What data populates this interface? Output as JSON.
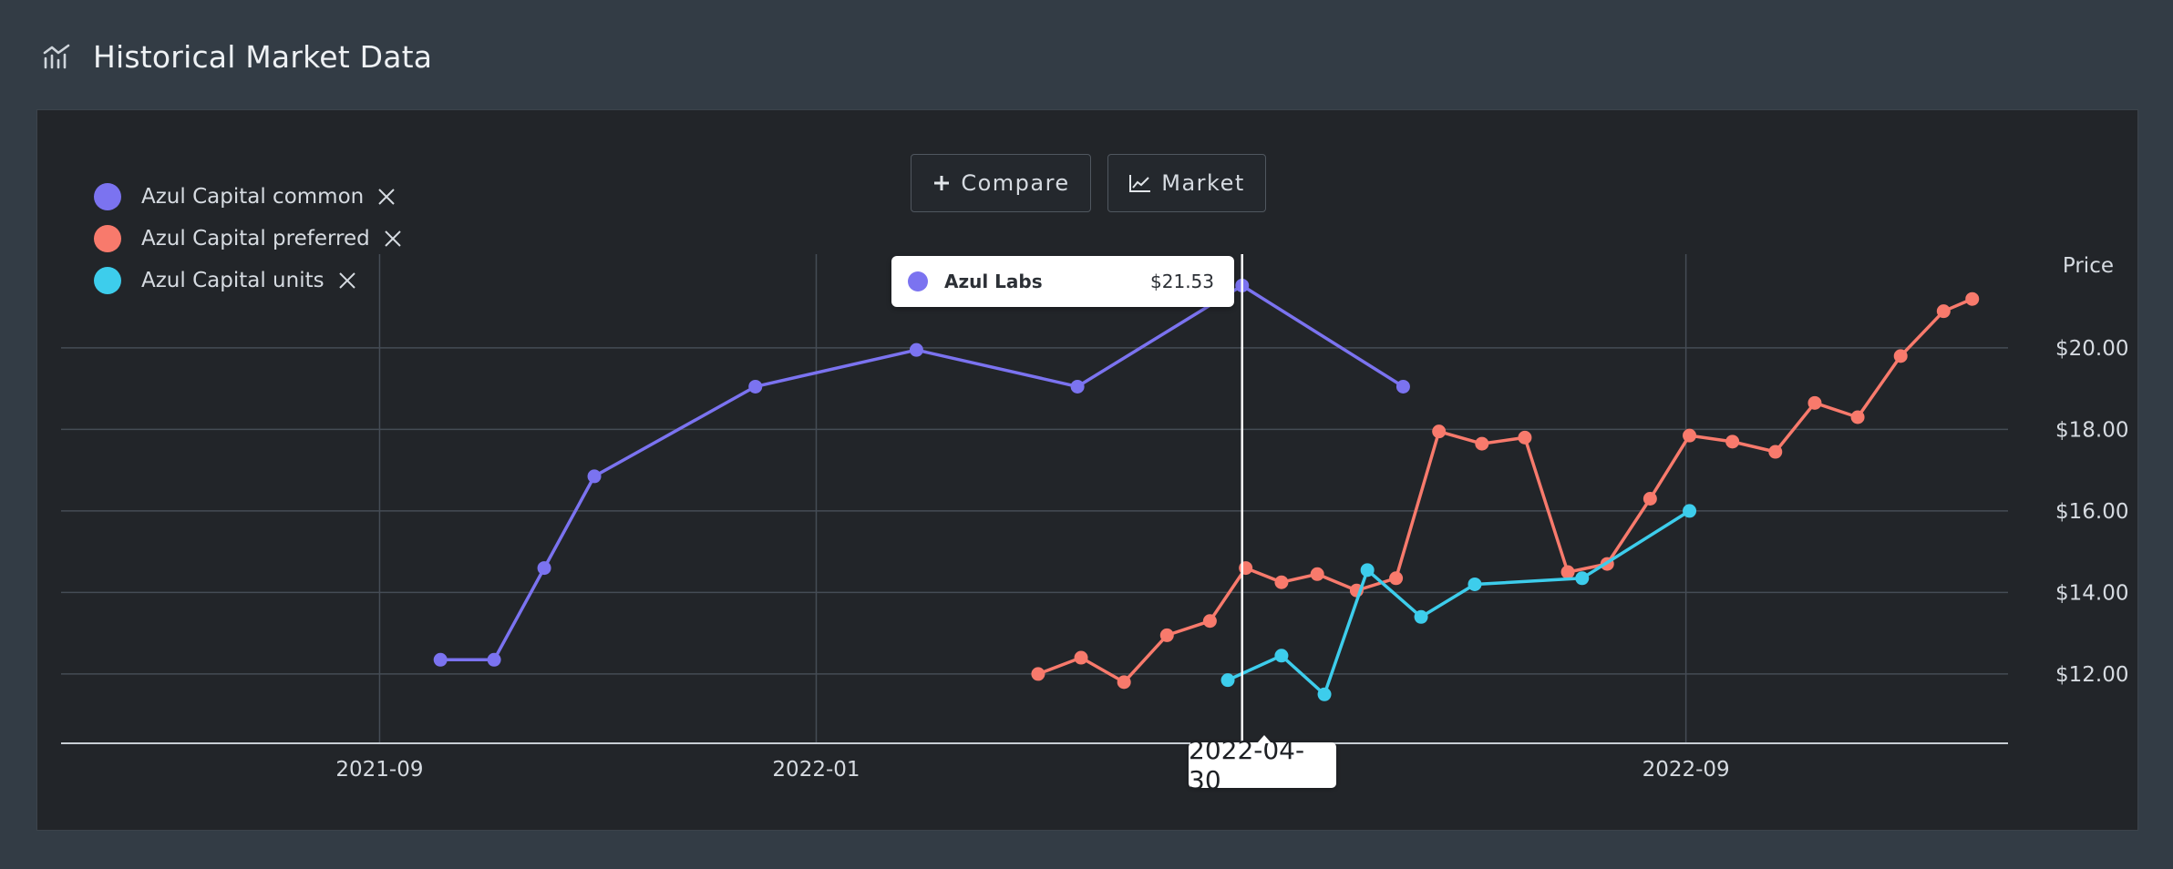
{
  "header": {
    "title": "Historical Market Data",
    "icon": "chart-icon"
  },
  "legend": [
    {
      "label": "Azul Capital common",
      "color": "#7b73f0"
    },
    {
      "label": "Azul Capital preferred",
      "color": "#f87a6c"
    },
    {
      "label": "Azul Capital units",
      "color": "#3dcdec"
    }
  ],
  "buttons": {
    "compare": "Compare",
    "market": "Market"
  },
  "tooltip": {
    "name": "Azul Labs",
    "value": "$21.53",
    "color": "#7b73f0"
  },
  "crosshair": {
    "date": "2022-04-30"
  },
  "chart_data": {
    "type": "line",
    "ylabel": "Price",
    "ylim": [
      10.3,
      22.3
    ],
    "y_ticks": [
      12,
      14,
      16,
      18,
      20
    ],
    "y_tick_labels": [
      "$12.00",
      "$14.00",
      "$16.00",
      "$18.00",
      "$20.00"
    ],
    "x_ticks": [
      "2021-09-01",
      "2022-01-01",
      "2022-09-01"
    ],
    "x_tick_labels": [
      "2021-09",
      "2022-01",
      "2022-09"
    ],
    "xlim": [
      "2021-06-04",
      "2022-11-30"
    ],
    "grid": true,
    "legend_position": "top-left",
    "series": [
      {
        "name": "Azul Capital common",
        "color": "#7b73f0",
        "x": [
          "2021-09-18",
          "2021-10-03",
          "2021-10-17",
          "2021-10-31",
          "2021-12-15",
          "2022-01-29",
          "2022-03-15",
          "2022-04-30",
          "2022-06-14"
        ],
        "y": [
          12.35,
          12.35,
          14.6,
          16.85,
          19.05,
          19.95,
          19.05,
          21.53,
          19.05
        ]
      },
      {
        "name": "Azul Capital preferred",
        "color": "#f87a6c",
        "x": [
          "2022-03-04",
          "2022-03-16",
          "2022-03-28",
          "2022-04-09",
          "2022-04-21",
          "2022-05-01",
          "2022-05-11",
          "2022-05-21",
          "2022-06-01",
          "2022-06-12",
          "2022-06-24",
          "2022-07-06",
          "2022-07-18",
          "2022-07-30",
          "2022-08-10",
          "2022-08-22",
          "2022-09-02",
          "2022-09-14",
          "2022-09-26",
          "2022-10-07",
          "2022-10-19",
          "2022-10-31",
          "2022-11-12",
          "2022-11-20"
        ],
        "y": [
          12.0,
          12.4,
          11.8,
          12.95,
          13.3,
          14.6,
          14.25,
          14.45,
          14.05,
          14.35,
          17.95,
          17.65,
          17.8,
          14.5,
          14.7,
          16.3,
          17.85,
          17.7,
          17.45,
          18.65,
          18.3,
          19.8,
          20.9,
          21.2
        ]
      },
      {
        "name": "Azul Capital units",
        "color": "#3dcdec",
        "x": [
          "2022-04-26",
          "2022-05-11",
          "2022-05-23",
          "2022-06-04",
          "2022-06-19",
          "2022-07-04",
          "2022-08-03",
          "2022-09-02"
        ],
        "y": [
          11.85,
          12.45,
          11.5,
          14.55,
          13.4,
          14.2,
          14.35,
          16.0
        ]
      }
    ]
  }
}
